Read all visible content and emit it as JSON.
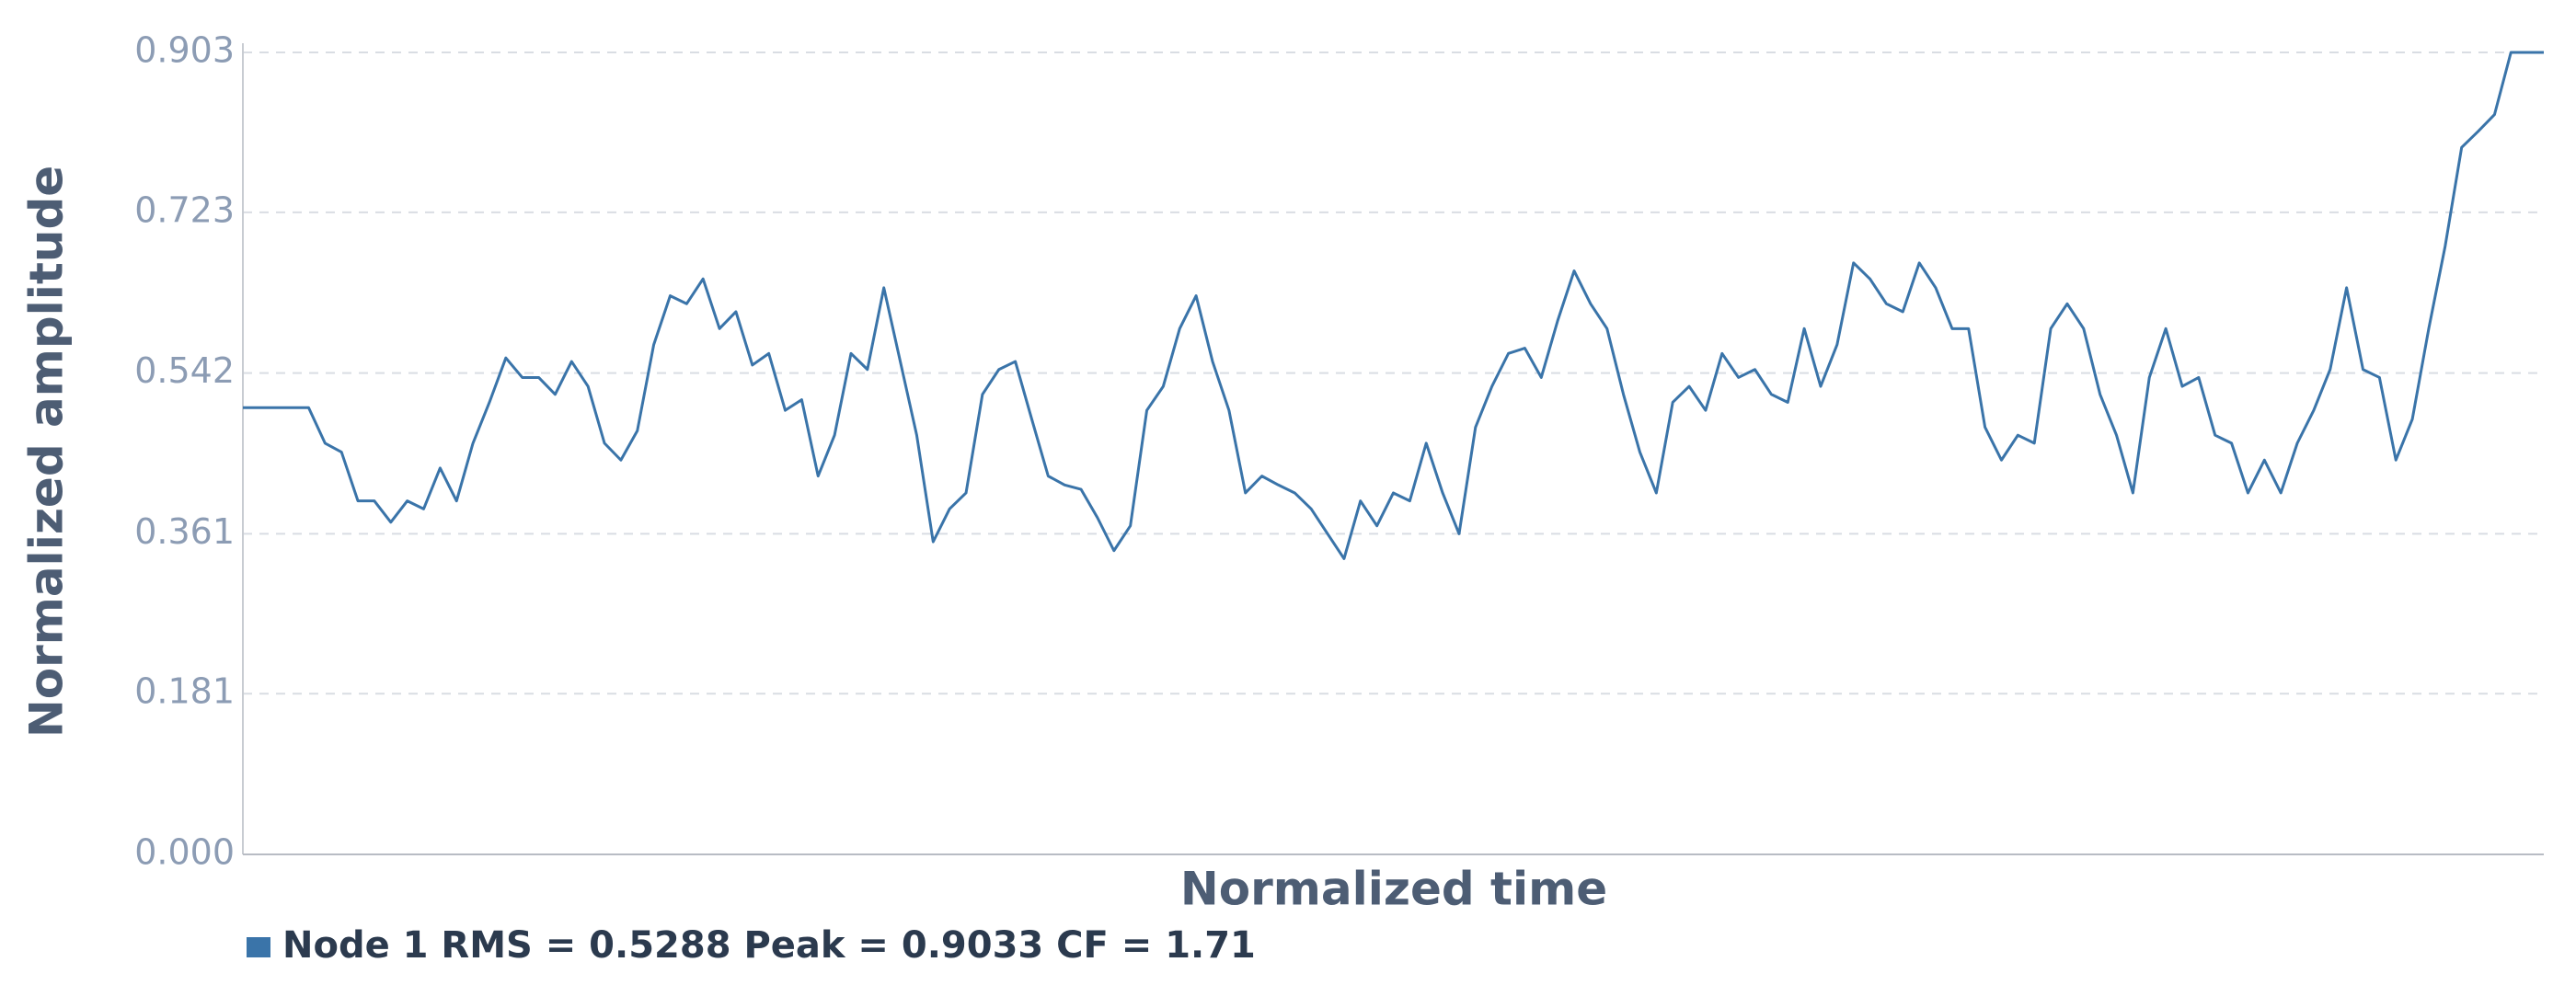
{
  "chart_data": {
    "type": "line",
    "xlabel": "Normalized time",
    "ylabel": "Normalized amplitude",
    "ylim": [
      0,
      0.903
    ],
    "yticks": [
      {
        "value": 0,
        "label": "0.000"
      },
      0.181,
      0.361,
      0.542,
      0.723,
      0.903
    ],
    "grid": true,
    "legend": "bottom-left",
    "series": [
      {
        "name": "Node 1 RMS = 0.5288 Peak = 0.9033 CF = 1.71",
        "color": "#3a74a9",
        "values": [
          0.503,
          0.503,
          0.503,
          0.503,
          0.503,
          0.463,
          0.453,
          0.398,
          0.398,
          0.374,
          0.398,
          0.389,
          0.435,
          0.398,
          0.463,
          0.509,
          0.559,
          0.537,
          0.537,
          0.518,
          0.555,
          0.527,
          0.463,
          0.444,
          0.477,
          0.574,
          0.629,
          0.62,
          0.648,
          0.592,
          0.611,
          0.551,
          0.564,
          0.5,
          0.512,
          0.426,
          0.472,
          0.564,
          0.546,
          0.638,
          0.555,
          0.472,
          0.352,
          0.389,
          0.407,
          0.518,
          0.546,
          0.555,
          0.49,
          0.426,
          0.416,
          0.411,
          0.379,
          0.342,
          0.37,
          0.5,
          0.527,
          0.592,
          0.629,
          0.555,
          0.5,
          0.407,
          0.426,
          0.416,
          0.407,
          0.389,
          0.361,
          0.333,
          0.398,
          0.37,
          0.407,
          0.398,
          0.463,
          0.407,
          0.361,
          0.481,
          0.527,
          0.564,
          0.57,
          0.537,
          0.601,
          0.657,
          0.62,
          0.592,
          0.518,
          0.453,
          0.407,
          0.509,
          0.527,
          0.5,
          0.564,
          0.537,
          0.546,
          0.518,
          0.509,
          0.592,
          0.527,
          0.574,
          0.666,
          0.648,
          0.62,
          0.611,
          0.666,
          0.638,
          0.592,
          0.592,
          0.481,
          0.444,
          0.472,
          0.463,
          0.592,
          0.62,
          0.592,
          0.518,
          0.472,
          0.407,
          0.537,
          0.592,
          0.527,
          0.537,
          0.472,
          0.463,
          0.407,
          0.444,
          0.407,
          0.463,
          0.5,
          0.546,
          0.638,
          0.546,
          0.537,
          0.444,
          0.49,
          0.592,
          0.685,
          0.796,
          0.814,
          0.833,
          0.903,
          0.903,
          0.903
        ]
      }
    ]
  }
}
